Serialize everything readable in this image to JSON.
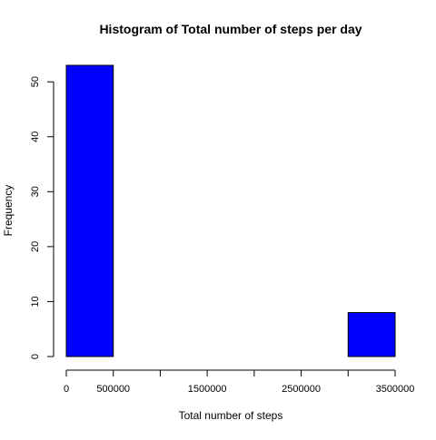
{
  "chart_data": {
    "type": "bar",
    "title": "Histogram of Total number of steps per day",
    "xlabel": "Total number of steps",
    "ylabel": "Frequency",
    "bins": [
      {
        "start": 0,
        "end": 500000,
        "count": 53
      },
      {
        "start": 500000,
        "end": 1000000,
        "count": 0
      },
      {
        "start": 1000000,
        "end": 1500000,
        "count": 0
      },
      {
        "start": 1500000,
        "end": 2000000,
        "count": 0
      },
      {
        "start": 2000000,
        "end": 2500000,
        "count": 0
      },
      {
        "start": 2500000,
        "end": 3000000,
        "count": 0
      },
      {
        "start": 3000000,
        "end": 3500000,
        "count": 8
      }
    ],
    "xlim": [
      0,
      3500000
    ],
    "ylim": [
      0,
      53
    ],
    "x_ticks": [
      0,
      500000,
      1000000,
      1500000,
      2000000,
      2500000,
      3000000,
      3500000
    ],
    "x_tick_labels": [
      "0",
      "500000",
      "",
      "1500000",
      "",
      "2500000",
      "",
      "3500000"
    ],
    "y_ticks": [
      0,
      10,
      20,
      30,
      40,
      50
    ],
    "y_tick_labels": [
      "0",
      "10",
      "20",
      "30",
      "40",
      "50"
    ],
    "bar_color": "#0000ff",
    "grid": false,
    "legend": false
  }
}
